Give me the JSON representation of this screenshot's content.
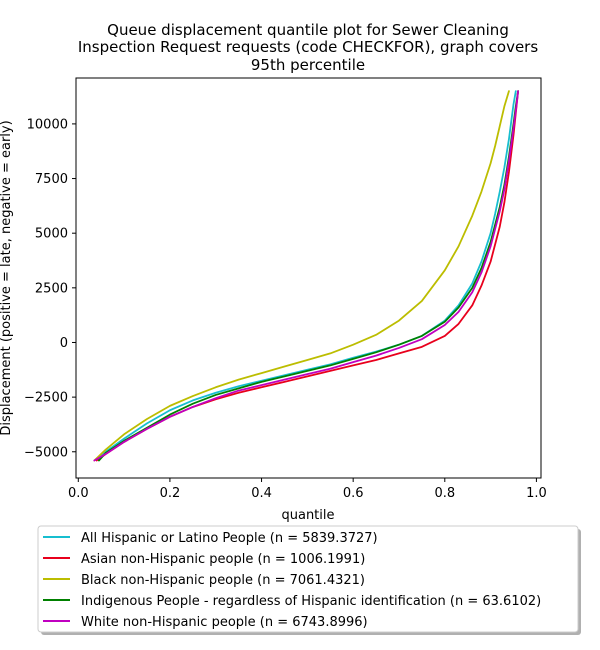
{
  "chart_data": {
    "type": "line",
    "title": [
      "Queue displacement quantile plot for Sewer Cleaning",
      "Inspection Request  requests (code CHECKFOR), graph covers",
      "95th percentile"
    ],
    "xlabel": "quantile",
    "ylabel": "Displacement (positive = late, negative = early)",
    "xlim": [
      -0.005,
      1.01
    ],
    "ylim": [
      -6200,
      12100
    ],
    "xticks": [
      0.0,
      0.2,
      0.4,
      0.6,
      0.8,
      1.0
    ],
    "xtick_labels": [
      "0.0",
      "0.2",
      "0.4",
      "0.6",
      "0.8",
      "1.0"
    ],
    "yticks": [
      -5000,
      -2500,
      0,
      2500,
      5000,
      7500,
      10000
    ],
    "ytick_labels": [
      "−5000",
      "−2500",
      "0",
      "2500",
      "5000",
      "7500",
      "10000"
    ],
    "legend_position": "below plot",
    "series": [
      {
        "name": "All Hispanic or Latino People (n = 5839.3727)",
        "color": "#17becf",
        "x": [
          0.045,
          0.06,
          0.1,
          0.15,
          0.2,
          0.25,
          0.3,
          0.35,
          0.4,
          0.45,
          0.5,
          0.55,
          0.6,
          0.65,
          0.7,
          0.75,
          0.8,
          0.83,
          0.86,
          0.88,
          0.9,
          0.91,
          0.92,
          0.93,
          0.94,
          0.945,
          0.95,
          0.955
        ],
        "y": [
          -5300,
          -5000,
          -4400,
          -3700,
          -3100,
          -2650,
          -2300,
          -2000,
          -1750,
          -1500,
          -1250,
          -1000,
          -700,
          -420,
          -100,
          300,
          1000,
          1700,
          2700,
          3700,
          5000,
          5900,
          6900,
          8000,
          9300,
          10100,
          10900,
          11500
        ]
      },
      {
        "name": "Asian non-Hispanic people (n = 1006.1991)",
        "color": "#e8001c",
        "x": [
          0.04,
          0.06,
          0.1,
          0.15,
          0.2,
          0.25,
          0.3,
          0.35,
          0.4,
          0.45,
          0.5,
          0.55,
          0.6,
          0.65,
          0.7,
          0.75,
          0.8,
          0.83,
          0.86,
          0.88,
          0.9,
          0.92,
          0.93,
          0.94,
          0.95,
          0.955,
          0.96
        ],
        "y": [
          -5400,
          -5100,
          -4550,
          -3950,
          -3400,
          -2950,
          -2600,
          -2300,
          -2050,
          -1800,
          -1550,
          -1300,
          -1050,
          -800,
          -500,
          -200,
          300,
          850,
          1700,
          2600,
          3700,
          5300,
          6400,
          7800,
          9500,
          10500,
          11500
        ]
      },
      {
        "name": "Black non-Hispanic people (n = 7061.4321)",
        "color": "#bcbd00",
        "x": [
          0.035,
          0.06,
          0.1,
          0.15,
          0.2,
          0.25,
          0.3,
          0.35,
          0.4,
          0.45,
          0.5,
          0.55,
          0.6,
          0.65,
          0.7,
          0.75,
          0.8,
          0.83,
          0.86,
          0.88,
          0.9,
          0.91,
          0.92,
          0.93,
          0.94
        ],
        "y": [
          -5400,
          -4900,
          -4200,
          -3500,
          -2900,
          -2450,
          -2050,
          -1700,
          -1400,
          -1100,
          -800,
          -500,
          -100,
          350,
          1000,
          1900,
          3300,
          4400,
          5800,
          6900,
          8200,
          9000,
          9900,
          10800,
          11500
        ]
      },
      {
        "name": "Indigenous People - regardless of Hispanic identification (n = 63.6102)",
        "color": "#008000",
        "x": [
          0.045,
          0.06,
          0.1,
          0.15,
          0.2,
          0.25,
          0.3,
          0.35,
          0.4,
          0.45,
          0.5,
          0.55,
          0.6,
          0.65,
          0.7,
          0.75,
          0.8,
          0.83,
          0.86,
          0.88,
          0.9,
          0.92,
          0.93,
          0.94,
          0.95,
          0.955,
          0.96
        ],
        "y": [
          -5400,
          -5050,
          -4500,
          -3900,
          -3300,
          -2800,
          -2400,
          -2100,
          -1800,
          -1550,
          -1300,
          -1050,
          -750,
          -450,
          -100,
          300,
          950,
          1600,
          2500,
          3400,
          4600,
          6200,
          7200,
          8500,
          10000,
          10800,
          11500
        ]
      },
      {
        "name": "White non-Hispanic people (n = 6743.8996)",
        "color": "#c000c0",
        "x": [
          0.035,
          0.06,
          0.1,
          0.15,
          0.2,
          0.25,
          0.3,
          0.35,
          0.4,
          0.45,
          0.5,
          0.55,
          0.6,
          0.65,
          0.7,
          0.75,
          0.8,
          0.83,
          0.86,
          0.88,
          0.9,
          0.92,
          0.93,
          0.94,
          0.95,
          0.955,
          0.96
        ],
        "y": [
          -5400,
          -5100,
          -4550,
          -3950,
          -3400,
          -2950,
          -2550,
          -2200,
          -1950,
          -1700,
          -1450,
          -1200,
          -900,
          -600,
          -250,
          150,
          800,
          1400,
          2300,
          3200,
          4400,
          6000,
          7000,
          8300,
          9800,
          10600,
          11500
        ]
      }
    ]
  }
}
